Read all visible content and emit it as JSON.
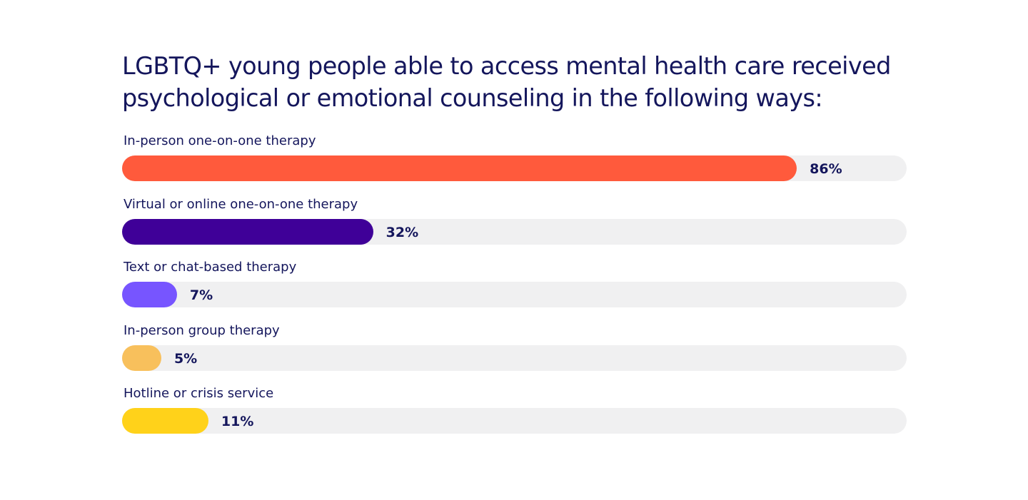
{
  "chart_data": {
    "type": "bar",
    "orientation": "horizontal",
    "title": "LGBTQ+ young people able to access mental health care received psychological or emotional counseling in the following ways:",
    "categories": [
      "In-person one-on-one therapy",
      "Virtual or online one-on-one therapy",
      "Text or chat-based therapy",
      "In-person group therapy",
      "Hotline or crisis service"
    ],
    "values": [
      86,
      32,
      7,
      5,
      11
    ],
    "value_labels": [
      "86%",
      "32%",
      "7%",
      "5%",
      "11%"
    ],
    "colors": [
      "#ff5a3c",
      "#3f0098",
      "#7755ff",
      "#f8c05c",
      "#ffd21a"
    ],
    "track_color": "#f0f0f1",
    "xlim": [
      0,
      100
    ],
    "grid": false,
    "legend": "none"
  }
}
